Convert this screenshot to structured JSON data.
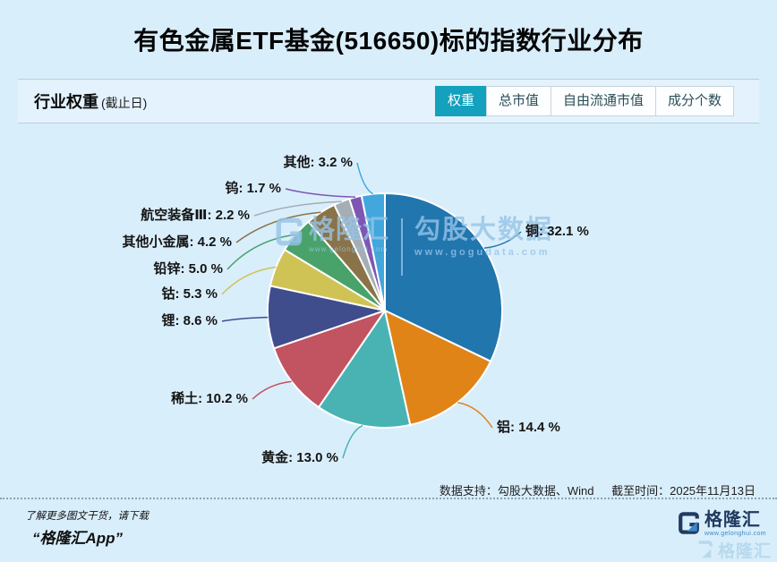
{
  "page_title": "有色金属ETF基金(516650)标的指数行业分布",
  "panel": {
    "title": "行业权重",
    "title_suffix": "(截止日)",
    "tabs": [
      {
        "label": "权重",
        "selected": true
      },
      {
        "label": "总市值",
        "selected": false
      },
      {
        "label": "自由流通市值",
        "selected": false
      },
      {
        "label": "成分个数",
        "selected": false
      }
    ],
    "selected_tab_color": "#13a1bd"
  },
  "chart_data": {
    "type": "pie",
    "title": "行业权重",
    "categories": [
      "铜",
      "铝",
      "黄金",
      "稀土",
      "锂",
      "钴",
      "铅锌",
      "其他小金属",
      "航空装备Ⅲ",
      "钨",
      "其他"
    ],
    "values": [
      32.1,
      14.4,
      13.0,
      10.2,
      8.6,
      5.3,
      5.0,
      4.2,
      2.2,
      1.7,
      3.2
    ],
    "unit": "%",
    "label_format": "{name}: {value} %",
    "colors": [
      "#2176ae",
      "#e08418",
      "#49b3b3",
      "#c25360",
      "#3f4d8d",
      "#cfc355",
      "#48a269",
      "#8a7348",
      "#a5adb5",
      "#7e57b3",
      "#41a7dc"
    ],
    "start_angle_deg": 0,
    "direction": "clockwise",
    "legend": "none"
  },
  "watermark": {
    "brand": "格隆汇",
    "brand_url": "www.gelonghui.com",
    "data_brand": "勾股大数据",
    "data_url": "www.gogudata.com"
  },
  "footer": {
    "source_note": "数据支持：勾股大数据、Wind",
    "as_of_note": "截至时间：2025年11月13日"
  },
  "bottom_bar": {
    "promo_line1": "了解更多图文干货，请下载",
    "promo_line2": "“格隆汇App”",
    "logo_text": "格隆汇",
    "logo_url": "www.gelonghui.com",
    "logo_navy": "#203a60",
    "logo_blue": "#3c86c6"
  }
}
